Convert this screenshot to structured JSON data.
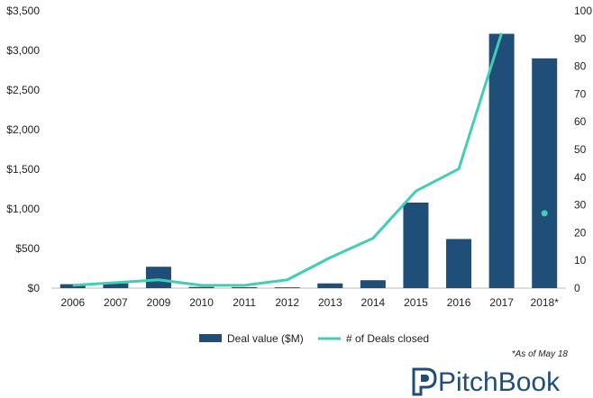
{
  "chart_data": {
    "type": "bar",
    "categories": [
      "2006",
      "2007",
      "2009",
      "2010",
      "2011",
      "2012",
      "2013",
      "2014",
      "2015",
      "2016",
      "2017",
      "2018*"
    ],
    "series": [
      {
        "name": "Deal value ($M)",
        "type": "bar",
        "axis": "left",
        "color": "#1f4e79",
        "values": [
          50,
          60,
          270,
          15,
          12,
          10,
          60,
          100,
          1080,
          620,
          3210,
          2900
        ]
      },
      {
        "name": "# of Deals closed",
        "type": "line",
        "axis": "right",
        "color": "#3ecfb5",
        "values": [
          1,
          2,
          3,
          1,
          1,
          3,
          11,
          18,
          35,
          43,
          92,
          null
        ],
        "extra_points": [
          {
            "category": "2018*",
            "value": 27
          }
        ]
      }
    ],
    "y_left": {
      "min": 0,
      "max": 3500,
      "ticks": [
        "$0",
        "$500",
        "$1,000",
        "$1,500",
        "$2,000",
        "$2,500",
        "$3,000",
        "$3,500"
      ]
    },
    "y_right": {
      "min": 0,
      "max": 100,
      "ticks": [
        "0",
        "10",
        "20",
        "30",
        "40",
        "50",
        "60",
        "70",
        "80",
        "90",
        "100"
      ]
    },
    "legend_position": "bottom-center",
    "grid": false,
    "title": "",
    "xlabel": "",
    "ylabel": ""
  },
  "legend": {
    "items": [
      {
        "label": "Deal value ($M)",
        "shape": "rect",
        "color": "#1f4e79"
      },
      {
        "label": "# of Deals closed",
        "shape": "line",
        "color": "#3ecfb5"
      }
    ]
  },
  "footnote": "*As of May 18",
  "brand": {
    "text": "PitchBook",
    "logo": "pitchbook-logo-icon",
    "color": "#1f4e79"
  }
}
